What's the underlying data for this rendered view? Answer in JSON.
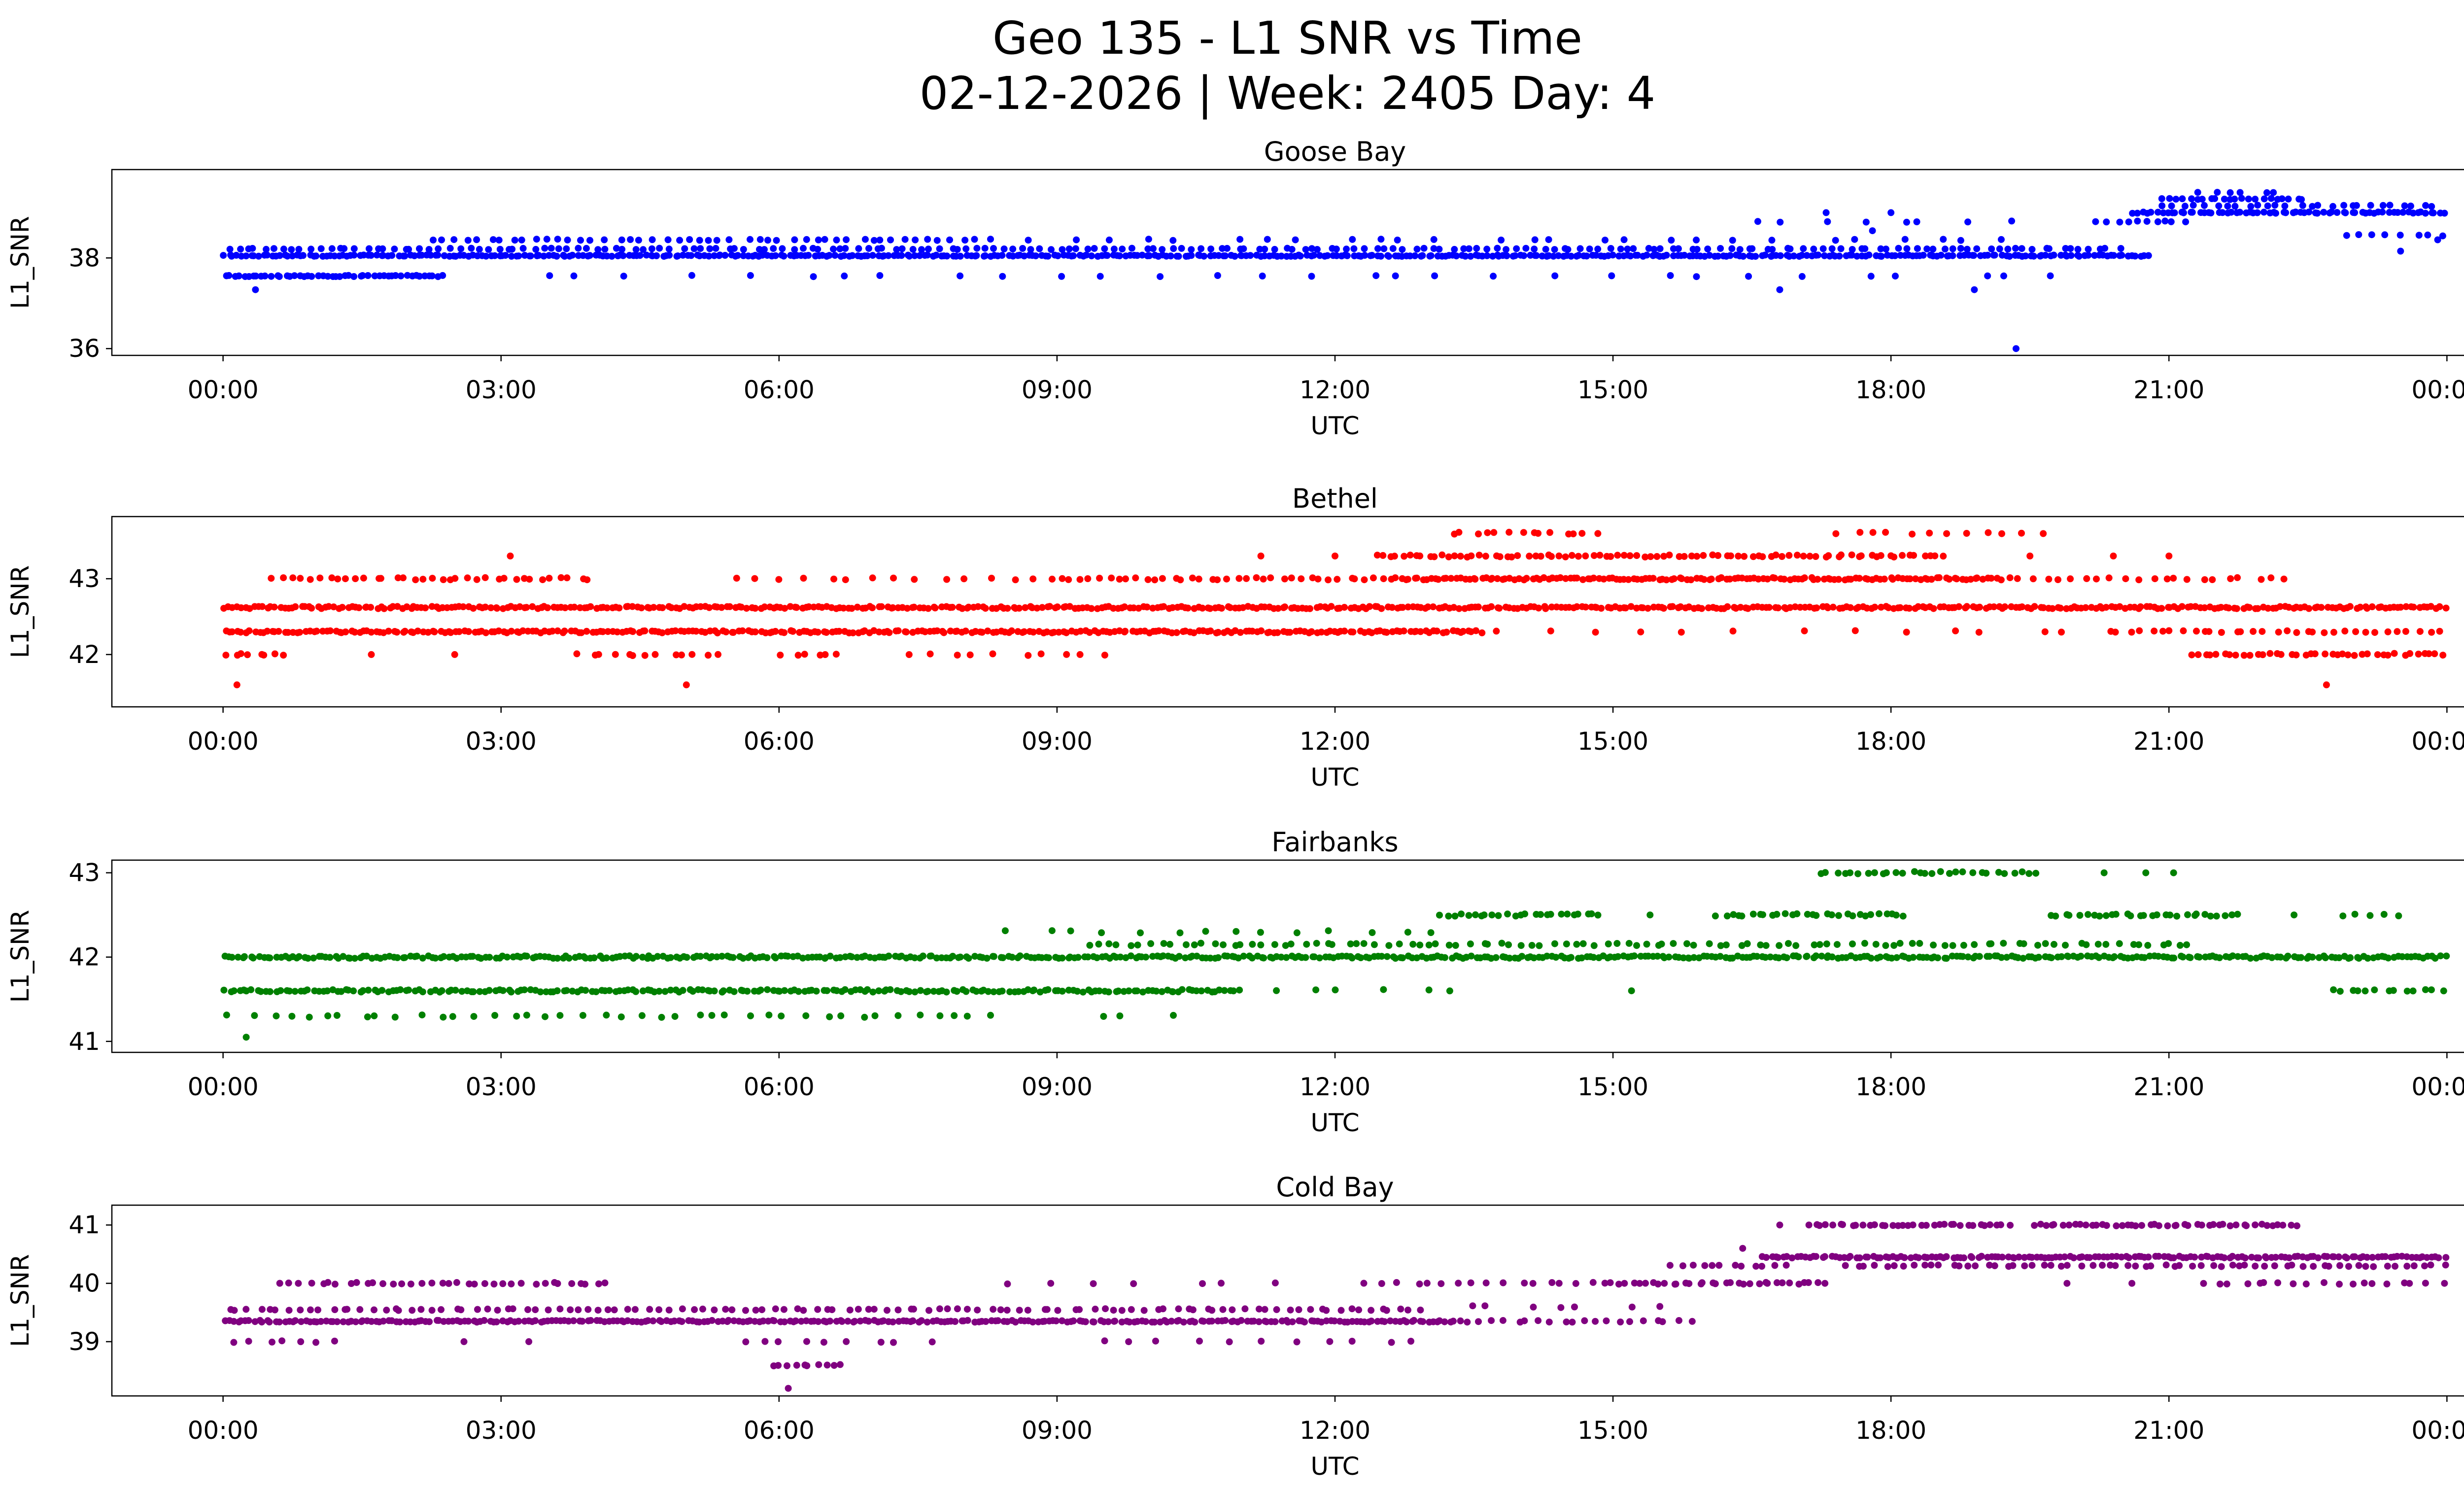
{
  "figure": {
    "title_line1": "Geo 135 - L1 SNR vs Time",
    "title_line2": "02-12-2026 | Week: 2405 Day: 4",
    "background_color": "#ffffff",
    "text_color": "#000000",
    "axis_color": "#000000"
  },
  "bands_format": "[snr_value, t_start_hour, t_end_hour, points_per_hour]",
  "outliers_format": "[snr_value, t_hour]",
  "chart_data": [
    {
      "type": "scatter",
      "station": "Goose Bay",
      "color": "#0000ff",
      "xlabel": "UTC",
      "ylabel": "L1_SNR",
      "xlim": [
        -1.2,
        25.2
      ],
      "ylim": [
        35.85,
        39.95
      ],
      "yticks": [
        36,
        38
      ],
      "xticks": [
        0,
        3,
        6,
        9,
        12,
        15,
        18,
        21,
        24
      ],
      "xtick_labels": [
        "00:00",
        "03:00",
        "06:00",
        "09:00",
        "12:00",
        "15:00",
        "18:00",
        "21:00",
        "00:00"
      ],
      "grid": false,
      "legend": "none",
      "bands": [
        [
          38.05,
          0,
          20.8,
          22
        ],
        [
          38.2,
          0,
          20.5,
          10
        ],
        [
          38.4,
          2.2,
          8.2,
          8
        ],
        [
          38.4,
          8.2,
          19.5,
          2.5
        ],
        [
          37.6,
          0,
          2.4,
          20
        ],
        [
          37.6,
          3.2,
          20.2,
          1.8
        ],
        [
          38.8,
          16.4,
          19.4,
          2.5
        ],
        [
          38.8,
          20.2,
          21.2,
          10
        ],
        [
          39.0,
          20.6,
          24,
          20
        ],
        [
          39.15,
          20.9,
          23.9,
          9
        ],
        [
          39.3,
          20.9,
          22.5,
          14
        ],
        [
          39.45,
          21.2,
          22.3,
          5
        ],
        [
          38.5,
          22.9,
          24,
          7
        ]
      ],
      "outliers": [
        [
          37.3,
          0.35
        ],
        [
          37.3,
          16.8
        ],
        [
          37.3,
          18.9
        ],
        [
          36.0,
          19.35
        ],
        [
          39.0,
          17.3
        ],
        [
          39.0,
          18.0
        ],
        [
          38.6,
          17.8
        ],
        [
          38.4,
          23.9
        ],
        [
          38.15,
          23.5
        ]
      ]
    },
    {
      "type": "scatter",
      "station": "Bethel",
      "color": "#ff0000",
      "xlabel": "UTC",
      "ylabel": "L1_SNR",
      "xlim": [
        -1.2,
        25.2
      ],
      "ylim": [
        41.31,
        43.82
      ],
      "yticks": [
        42,
        43
      ],
      "xticks": [
        0,
        3,
        6,
        9,
        12,
        15,
        18,
        21,
        24
      ],
      "xtick_labels": [
        "00:00",
        "03:00",
        "06:00",
        "09:00",
        "12:00",
        "15:00",
        "18:00",
        "21:00",
        "00:00"
      ],
      "grid": false,
      "legend": "none",
      "bands": [
        [
          42.62,
          0,
          24,
          22
        ],
        [
          42.3,
          0,
          13.6,
          22
        ],
        [
          42.3,
          13.6,
          20.3,
          2
        ],
        [
          42.3,
          20.3,
          24,
          9
        ],
        [
          43.0,
          0.5,
          4.0,
          10
        ],
        [
          43.0,
          5.4,
          8.9,
          4
        ],
        [
          43.0,
          8.9,
          12.6,
          10
        ],
        [
          43.0,
          12.6,
          19.2,
          22
        ],
        [
          43.0,
          19.2,
          22.3,
          7
        ],
        [
          43.3,
          12.4,
          18.6,
          14
        ],
        [
          43.6,
          13.2,
          14.9,
          8
        ],
        [
          43.6,
          17.3,
          19.7,
          5
        ],
        [
          42.0,
          0.0,
          0.7,
          12
        ],
        [
          42.0,
          3.8,
          5.4,
          8
        ],
        [
          42.0,
          6.0,
          6.7,
          8
        ],
        [
          42.0,
          7.3,
          9.7,
          4
        ],
        [
          42.0,
          21.2,
          24,
          14
        ]
      ],
      "outliers": [
        [
          41.6,
          0.15
        ],
        [
          41.6,
          5.0
        ],
        [
          41.6,
          22.7
        ],
        [
          43.3,
          3.1
        ],
        [
          43.3,
          11.2
        ],
        [
          43.3,
          12.0
        ],
        [
          43.3,
          19.5
        ],
        [
          43.3,
          20.4
        ],
        [
          43.3,
          21.0
        ],
        [
          42.0,
          1.6
        ],
        [
          42.0,
          2.5
        ]
      ]
    },
    {
      "type": "scatter",
      "station": "Fairbanks",
      "color": "#008000",
      "xlabel": "UTC",
      "ylabel": "L1_SNR",
      "xlim": [
        -1.2,
        25.2
      ],
      "ylim": [
        40.87,
        43.15
      ],
      "yticks": [
        41,
        42,
        43
      ],
      "xticks": [
        0,
        3,
        6,
        9,
        12,
        15,
        18,
        21,
        24
      ],
      "xtick_labels": [
        "00:00",
        "03:00",
        "06:00",
        "09:00",
        "12:00",
        "15:00",
        "18:00",
        "21:00",
        "00:00"
      ],
      "grid": false,
      "legend": "none",
      "bands": [
        [
          42.0,
          0,
          24,
          22
        ],
        [
          42.15,
          9.3,
          21.3,
          9
        ],
        [
          41.6,
          0,
          11.0,
          20
        ],
        [
          41.6,
          11.0,
          13.6,
          2.5
        ],
        [
          41.6,
          22.7,
          24,
          10
        ],
        [
          41.3,
          0,
          8.4,
          5
        ],
        [
          41.3,
          9.2,
          10.3,
          2.5
        ],
        [
          42.3,
          8.4,
          13.2,
          3
        ],
        [
          42.5,
          13.1,
          14.9,
          14
        ],
        [
          42.5,
          16.1,
          18.2,
          14
        ],
        [
          42.5,
          19.7,
          21.8,
          14
        ],
        [
          42.5,
          22.8,
          23.5,
          7
        ],
        [
          43.0,
          17.2,
          19.6,
          12
        ]
      ],
      "outliers": [
        [
          41.05,
          0.25
        ],
        [
          42.5,
          15.4
        ],
        [
          42.5,
          22.35
        ],
        [
          43.0,
          20.3
        ],
        [
          43.0,
          20.75
        ],
        [
          43.0,
          21.05
        ],
        [
          41.6,
          15.2
        ]
      ]
    },
    {
      "type": "scatter",
      "station": "Cold Bay",
      "color": "#800080",
      "xlabel": "UTC",
      "ylabel": "L1_SNR",
      "xlim": [
        -1.2,
        25.2
      ],
      "ylim": [
        38.07,
        41.34
      ],
      "yticks": [
        39,
        40,
        41
      ],
      "xticks": [
        0,
        3,
        6,
        9,
        12,
        15,
        18,
        21,
        24
      ],
      "xtick_labels": [
        "00:00",
        "03:00",
        "06:00",
        "09:00",
        "12:00",
        "15:00",
        "18:00",
        "21:00",
        "00:00"
      ],
      "grid": false,
      "legend": "none",
      "bands": [
        [
          39.35,
          0,
          13.3,
          22
        ],
        [
          39.35,
          13.3,
          15.9,
          8
        ],
        [
          39.55,
          0,
          13.0,
          9
        ],
        [
          39.0,
          0.1,
          1.3,
          6
        ],
        [
          39.0,
          5.5,
          7.7,
          4
        ],
        [
          39.0,
          9.3,
          13.1,
          3
        ],
        [
          38.6,
          5.9,
          6.7,
          12
        ],
        [
          39.6,
          13.2,
          15.6,
          3
        ],
        [
          40.0,
          0.6,
          4.2,
          10
        ],
        [
          40.0,
          8.4,
          11.7,
          2
        ],
        [
          40.0,
          12.3,
          14.9,
          6
        ],
        [
          40.0,
          14.9,
          17.3,
          14
        ],
        [
          40.0,
          21.3,
          24,
          7
        ],
        [
          40.3,
          15.6,
          16.9,
          9
        ],
        [
          40.45,
          16.6,
          24,
          22
        ],
        [
          40.3,
          17.5,
          24,
          10
        ],
        [
          41.0,
          17.1,
          19.3,
          16
        ],
        [
          41.0,
          19.5,
          22.4,
          16
        ]
      ],
      "outliers": [
        [
          38.2,
          6.1
        ],
        [
          39.0,
          2.6
        ],
        [
          39.0,
          3.3
        ],
        [
          40.0,
          19.9
        ],
        [
          40.0,
          20.6
        ],
        [
          41.0,
          16.8
        ],
        [
          40.6,
          16.4
        ]
      ]
    }
  ]
}
